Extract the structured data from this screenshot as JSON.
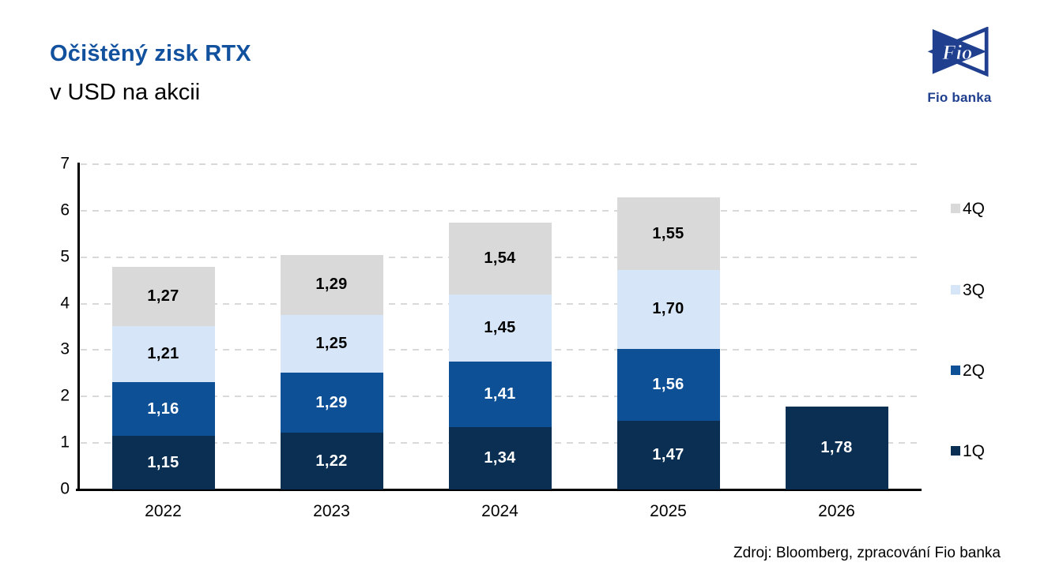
{
  "header": {
    "title": "Očištěný zisk RTX",
    "subtitle": "v USD na akcii"
  },
  "logo": {
    "text": "Fio",
    "caption": "Fio banka",
    "color": "#20408F"
  },
  "source": "Zdroj: Bloomberg, zpracování Fio banka",
  "colors": {
    "title": "#11519E",
    "axis": "#000000",
    "grid": "#D9D9D9"
  },
  "chart_data": {
    "type": "bar",
    "stacked": true,
    "title": "Očištěný zisk RTX",
    "subtitle": "v USD na akcii",
    "xlabel": "",
    "ylabel": "",
    "ylim": [
      0,
      7
    ],
    "yticks": [
      0,
      1,
      2,
      3,
      4,
      5,
      6,
      7
    ],
    "grid": true,
    "legend_position": "right",
    "legend_order": [
      "4Q",
      "3Q",
      "2Q",
      "1Q"
    ],
    "categories": [
      "2022",
      "2023",
      "2024",
      "2025",
      "2026"
    ],
    "series": [
      {
        "name": "1Q",
        "color": "#0A2F52",
        "label_color": "#FFFFFF",
        "values": [
          1.15,
          1.22,
          1.34,
          1.47,
          1.78
        ],
        "labels": [
          "1,15",
          "1,22",
          "1,34",
          "1,47",
          "1,78"
        ]
      },
      {
        "name": "2Q",
        "color": "#0E5096",
        "label_color": "#FFFFFF",
        "values": [
          1.16,
          1.29,
          1.41,
          1.56,
          null
        ],
        "labels": [
          "1,16",
          "1,29",
          "1,41",
          "1,56",
          ""
        ]
      },
      {
        "name": "3Q",
        "color": "#D6E6F8",
        "label_color": "#000000",
        "values": [
          1.21,
          1.25,
          1.45,
          1.7,
          null
        ],
        "labels": [
          "1,21",
          "1,25",
          "1,45",
          "1,70",
          ""
        ]
      },
      {
        "name": "4Q",
        "color": "#D9D9D9",
        "label_color": "#000000",
        "values": [
          1.27,
          1.29,
          1.54,
          1.55,
          null
        ],
        "labels": [
          "1,27",
          "1,29",
          "1,54",
          "1,55",
          ""
        ]
      }
    ]
  }
}
